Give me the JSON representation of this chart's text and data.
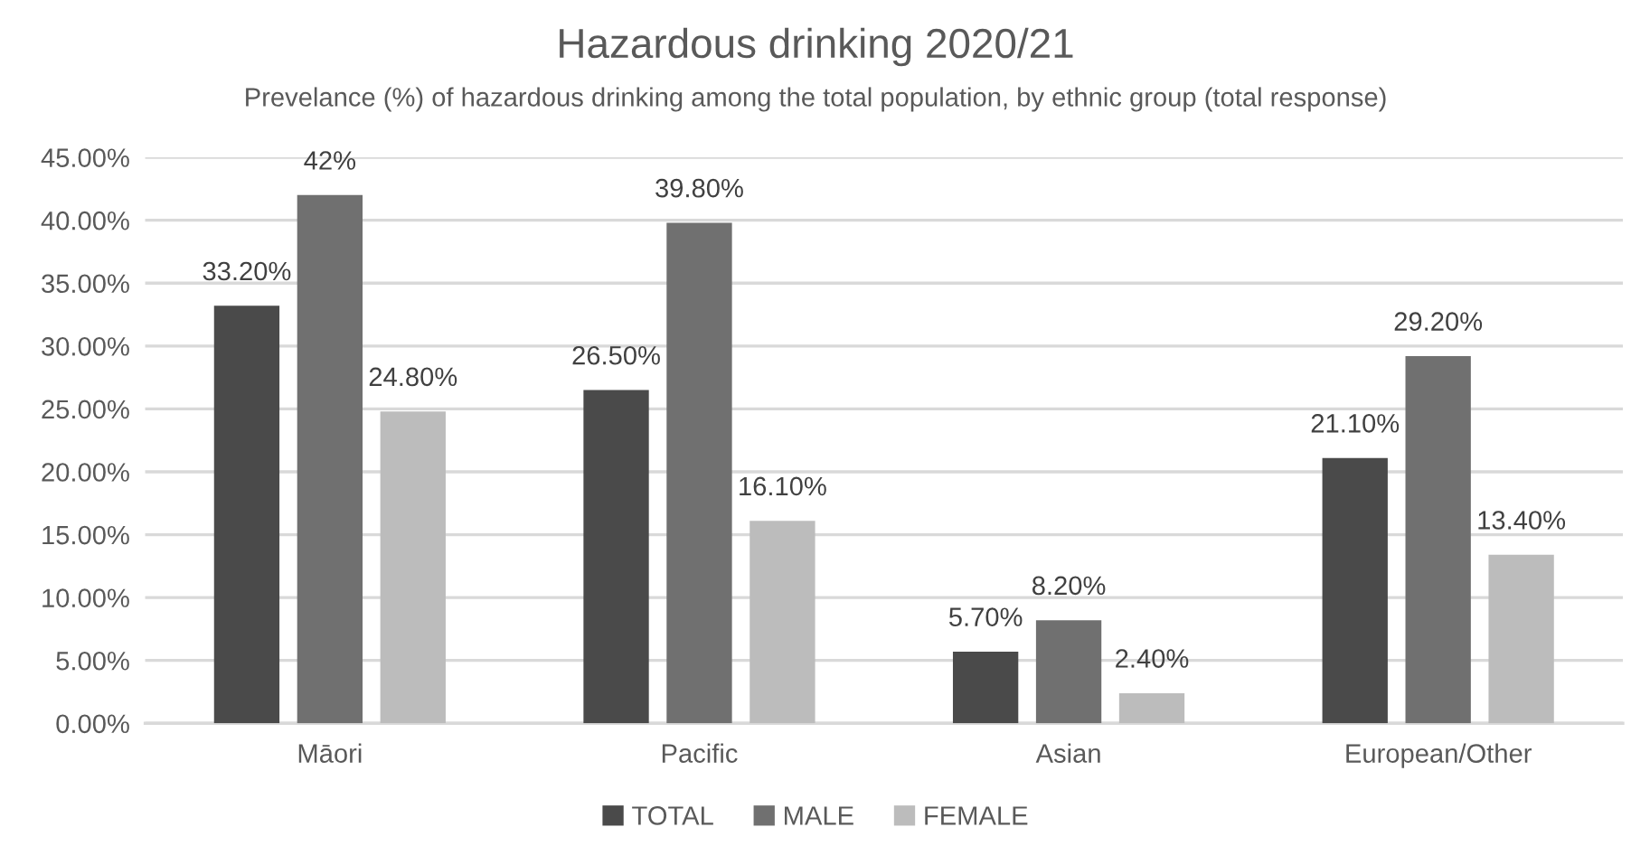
{
  "chart_data": {
    "type": "bar",
    "title": "Hazardous drinking 2020/21",
    "subtitle": "Prevelance (%) of hazardous drinking among the total population, by ethnic group (total response)",
    "categories": [
      "Māori",
      "Pacific",
      "Asian",
      "European/Other"
    ],
    "series": [
      {
        "name": "TOTAL",
        "color": "#4a4a4a",
        "values": [
          33.2,
          26.5,
          5.7,
          21.1
        ],
        "value_labels": [
          "33.20%",
          "26.50%",
          "5.70%",
          "21.10%"
        ]
      },
      {
        "name": "MALE",
        "color": "#707070",
        "values": [
          42,
          39.8,
          8.2,
          29.2
        ],
        "value_labels": [
          "42%",
          "39.80%",
          "8.20%",
          "29.20%"
        ]
      },
      {
        "name": "FEMALE",
        "color": "#bcbcbc",
        "values": [
          24.8,
          16.1,
          2.4,
          13.4
        ],
        "value_labels": [
          "24.80%",
          "16.10%",
          "2.40%",
          "13.40%"
        ]
      }
    ],
    "ylim": [
      0,
      45
    ],
    "yticks": [
      {
        "value": 0,
        "label": "0.00%"
      },
      {
        "value": 5,
        "label": "5.00%"
      },
      {
        "value": 10,
        "label": "10.00%"
      },
      {
        "value": 15,
        "label": "15.00%"
      },
      {
        "value": 20,
        "label": "20.00%"
      },
      {
        "value": 25,
        "label": "25.00%"
      },
      {
        "value": 30,
        "label": "30.00%"
      },
      {
        "value": 35,
        "label": "35.00%"
      },
      {
        "value": 40,
        "label": "40.00%"
      },
      {
        "value": 45,
        "label": "45.00%"
      }
    ],
    "grid": "y",
    "legend": "bottom"
  }
}
